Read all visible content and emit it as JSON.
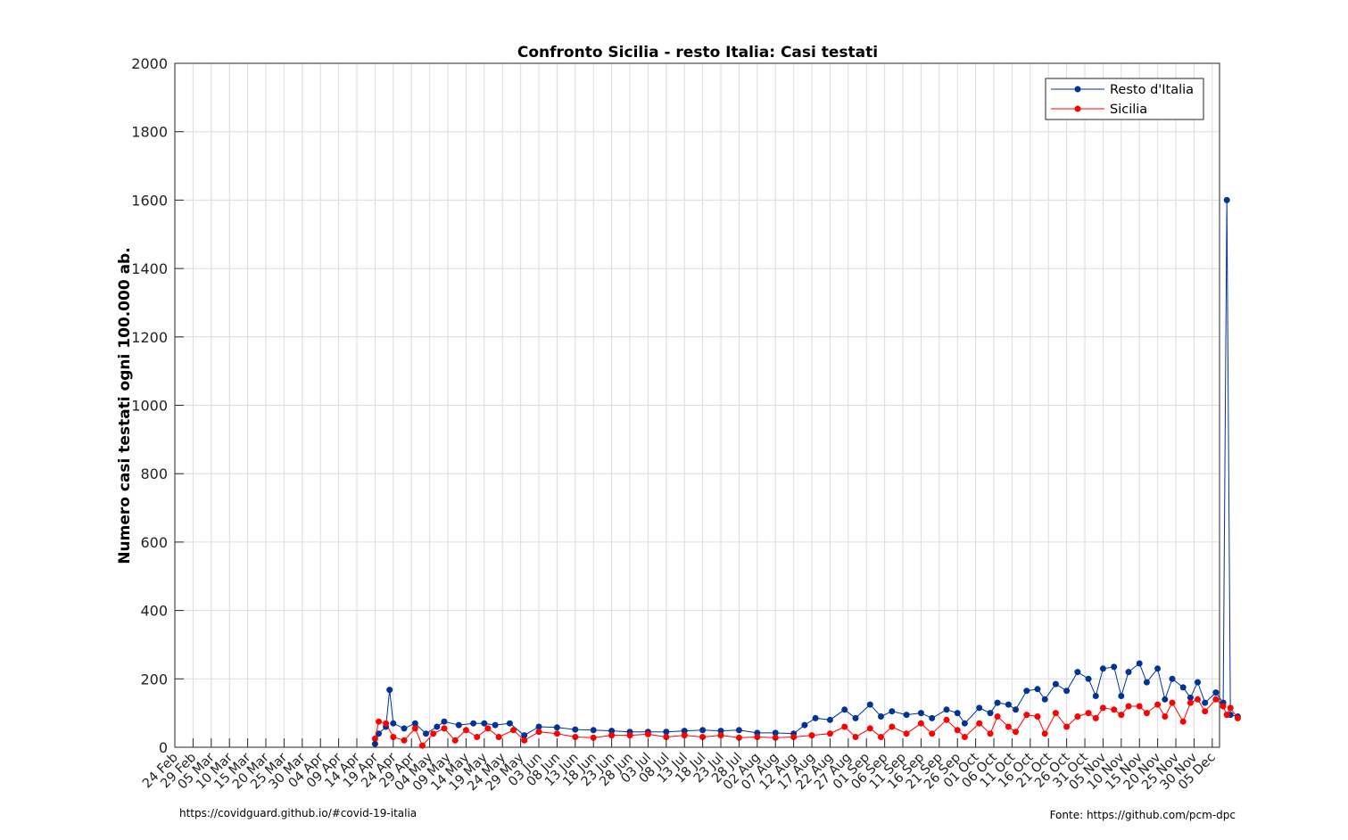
{
  "chart_data": {
    "type": "line",
    "title": "Confronto Sicilia - resto Italia: Casi testati",
    "xlabel": "",
    "ylabel": "Numero casi testati ogni 100.000 ab.",
    "ylim": [
      0,
      2000
    ],
    "yticks": [
      0,
      200,
      400,
      600,
      800,
      1000,
      1200,
      1400,
      1600,
      1800,
      2000
    ],
    "grid": true,
    "legend_position": "top-right",
    "x_start": "2020-02-24",
    "x_end": "2020-12-07",
    "xticks": [
      "24 Feb",
      "29 Feb",
      "05 Mar",
      "10 Mar",
      "15 Mar",
      "20 Mar",
      "25 Mar",
      "30 Mar",
      "04 Apr",
      "09 Apr",
      "14 Apr",
      "19 Apr",
      "24 Apr",
      "29 Apr",
      "04 May",
      "09 May",
      "14 May",
      "19 May",
      "24 May",
      "29 May",
      "03 Jun",
      "08 Jun",
      "13 Jun",
      "18 Jun",
      "23 Jun",
      "28 Jun",
      "03 Jul",
      "08 Jul",
      "13 Jul",
      "18 Jul",
      "23 Jul",
      "28 Jul",
      "02 Aug",
      "07 Aug",
      "12 Aug",
      "17 Aug",
      "22 Aug",
      "27 Aug",
      "01 Sep",
      "06 Sep",
      "11 Sep",
      "16 Sep",
      "21 Sep",
      "26 Sep",
      "01 Oct",
      "06 Oct",
      "11 Oct",
      "16 Oct",
      "21 Oct",
      "26 Oct",
      "31 Oct",
      "05 Nov",
      "10 Nov",
      "15 Nov",
      "20 Nov",
      "25 Nov",
      "30 Nov",
      "05 Dec"
    ],
    "series": [
      {
        "name": "Resto d'Italia",
        "color": "#003399",
        "points": [
          [
            "2020-04-19",
            10
          ],
          [
            "2020-04-20",
            40
          ],
          [
            "2020-04-22",
            60
          ],
          [
            "2020-04-23",
            168
          ],
          [
            "2020-04-24",
            70
          ],
          [
            "2020-04-27",
            55
          ],
          [
            "2020-04-30",
            70
          ],
          [
            "2020-05-03",
            40
          ],
          [
            "2020-05-06",
            60
          ],
          [
            "2020-05-08",
            75
          ],
          [
            "2020-05-12",
            65
          ],
          [
            "2020-05-16",
            70
          ],
          [
            "2020-05-19",
            70
          ],
          [
            "2020-05-22",
            65
          ],
          [
            "2020-05-26",
            70
          ],
          [
            "2020-05-30",
            35
          ],
          [
            "2020-06-03",
            60
          ],
          [
            "2020-06-08",
            58
          ],
          [
            "2020-06-13",
            52
          ],
          [
            "2020-06-18",
            50
          ],
          [
            "2020-06-23",
            48
          ],
          [
            "2020-06-28",
            45
          ],
          [
            "2020-07-03",
            45
          ],
          [
            "2020-07-08",
            45
          ],
          [
            "2020-07-13",
            48
          ],
          [
            "2020-07-18",
            50
          ],
          [
            "2020-07-23",
            48
          ],
          [
            "2020-07-28",
            50
          ],
          [
            "2020-08-02",
            42
          ],
          [
            "2020-08-07",
            42
          ],
          [
            "2020-08-12",
            40
          ],
          [
            "2020-08-15",
            65
          ],
          [
            "2020-08-18",
            85
          ],
          [
            "2020-08-22",
            80
          ],
          [
            "2020-08-26",
            110
          ],
          [
            "2020-08-29",
            85
          ],
          [
            "2020-09-02",
            125
          ],
          [
            "2020-09-05",
            90
          ],
          [
            "2020-09-08",
            105
          ],
          [
            "2020-09-12",
            95
          ],
          [
            "2020-09-16",
            100
          ],
          [
            "2020-09-19",
            85
          ],
          [
            "2020-09-23",
            110
          ],
          [
            "2020-09-26",
            100
          ],
          [
            "2020-09-28",
            70
          ],
          [
            "2020-10-02",
            115
          ],
          [
            "2020-10-05",
            100
          ],
          [
            "2020-10-07",
            130
          ],
          [
            "2020-10-10",
            125
          ],
          [
            "2020-10-12",
            110
          ],
          [
            "2020-10-15",
            165
          ],
          [
            "2020-10-18",
            170
          ],
          [
            "2020-10-20",
            140
          ],
          [
            "2020-10-23",
            185
          ],
          [
            "2020-10-26",
            165
          ],
          [
            "2020-10-29",
            220
          ],
          [
            "2020-11-01",
            200
          ],
          [
            "2020-11-03",
            150
          ],
          [
            "2020-11-05",
            230
          ],
          [
            "2020-11-08",
            235
          ],
          [
            "2020-11-10",
            150
          ],
          [
            "2020-11-12",
            220
          ],
          [
            "2020-11-15",
            245
          ],
          [
            "2020-11-17",
            190
          ],
          [
            "2020-11-20",
            230
          ],
          [
            "2020-11-22",
            140
          ],
          [
            "2020-11-24",
            200
          ],
          [
            "2020-11-27",
            175
          ],
          [
            "2020-11-29",
            145
          ],
          [
            "2020-12-01",
            190
          ],
          [
            "2020-12-03",
            130
          ],
          [
            "2020-12-06",
            160
          ],
          [
            "2020-12-08",
            130
          ],
          [
            "2020-12-09",
            1600
          ],
          [
            "2020-12-10",
            95
          ],
          [
            "2020-12-12",
            90
          ]
        ]
      },
      {
        "name": "Sicilia",
        "color": "#ff0000",
        "points": [
          [
            "2020-04-19",
            25
          ],
          [
            "2020-04-20",
            75
          ],
          [
            "2020-04-22",
            70
          ],
          [
            "2020-04-24",
            30
          ],
          [
            "2020-04-27",
            20
          ],
          [
            "2020-04-30",
            55
          ],
          [
            "2020-05-02",
            5
          ],
          [
            "2020-05-05",
            40
          ],
          [
            "2020-05-08",
            55
          ],
          [
            "2020-05-11",
            20
          ],
          [
            "2020-05-14",
            50
          ],
          [
            "2020-05-17",
            30
          ],
          [
            "2020-05-20",
            55
          ],
          [
            "2020-05-23",
            30
          ],
          [
            "2020-05-27",
            50
          ],
          [
            "2020-05-30",
            20
          ],
          [
            "2020-06-03",
            45
          ],
          [
            "2020-06-08",
            40
          ],
          [
            "2020-06-13",
            30
          ],
          [
            "2020-06-18",
            28
          ],
          [
            "2020-06-23",
            35
          ],
          [
            "2020-06-28",
            35
          ],
          [
            "2020-07-03",
            38
          ],
          [
            "2020-07-08",
            30
          ],
          [
            "2020-07-13",
            35
          ],
          [
            "2020-07-18",
            30
          ],
          [
            "2020-07-23",
            35
          ],
          [
            "2020-07-28",
            28
          ],
          [
            "2020-08-02",
            30
          ],
          [
            "2020-08-07",
            28
          ],
          [
            "2020-08-12",
            30
          ],
          [
            "2020-08-17",
            35
          ],
          [
            "2020-08-22",
            40
          ],
          [
            "2020-08-26",
            60
          ],
          [
            "2020-08-29",
            30
          ],
          [
            "2020-09-02",
            55
          ],
          [
            "2020-09-05",
            30
          ],
          [
            "2020-09-08",
            60
          ],
          [
            "2020-09-12",
            40
          ],
          [
            "2020-09-16",
            70
          ],
          [
            "2020-09-19",
            40
          ],
          [
            "2020-09-23",
            80
          ],
          [
            "2020-09-26",
            50
          ],
          [
            "2020-09-28",
            30
          ],
          [
            "2020-10-02",
            70
          ],
          [
            "2020-10-05",
            40
          ],
          [
            "2020-10-07",
            90
          ],
          [
            "2020-10-10",
            60
          ],
          [
            "2020-10-12",
            45
          ],
          [
            "2020-10-15",
            95
          ],
          [
            "2020-10-18",
            90
          ],
          [
            "2020-10-20",
            40
          ],
          [
            "2020-10-23",
            100
          ],
          [
            "2020-10-26",
            60
          ],
          [
            "2020-10-29",
            90
          ],
          [
            "2020-11-01",
            100
          ],
          [
            "2020-11-03",
            85
          ],
          [
            "2020-11-05",
            115
          ],
          [
            "2020-11-08",
            110
          ],
          [
            "2020-11-10",
            95
          ],
          [
            "2020-11-12",
            120
          ],
          [
            "2020-11-15",
            120
          ],
          [
            "2020-11-17",
            100
          ],
          [
            "2020-11-20",
            125
          ],
          [
            "2020-11-22",
            90
          ],
          [
            "2020-11-24",
            130
          ],
          [
            "2020-11-27",
            75
          ],
          [
            "2020-11-29",
            130
          ],
          [
            "2020-12-01",
            140
          ],
          [
            "2020-12-03",
            105
          ],
          [
            "2020-12-06",
            140
          ],
          [
            "2020-12-08",
            120
          ],
          [
            "2020-12-09",
            95
          ],
          [
            "2020-12-10",
            115
          ],
          [
            "2020-12-12",
            85
          ]
        ]
      }
    ]
  },
  "footer": {
    "left": "https://covidguard.github.io/#covid-19-italia",
    "right": "Fonte: https://github.com/pcm-dpc"
  }
}
